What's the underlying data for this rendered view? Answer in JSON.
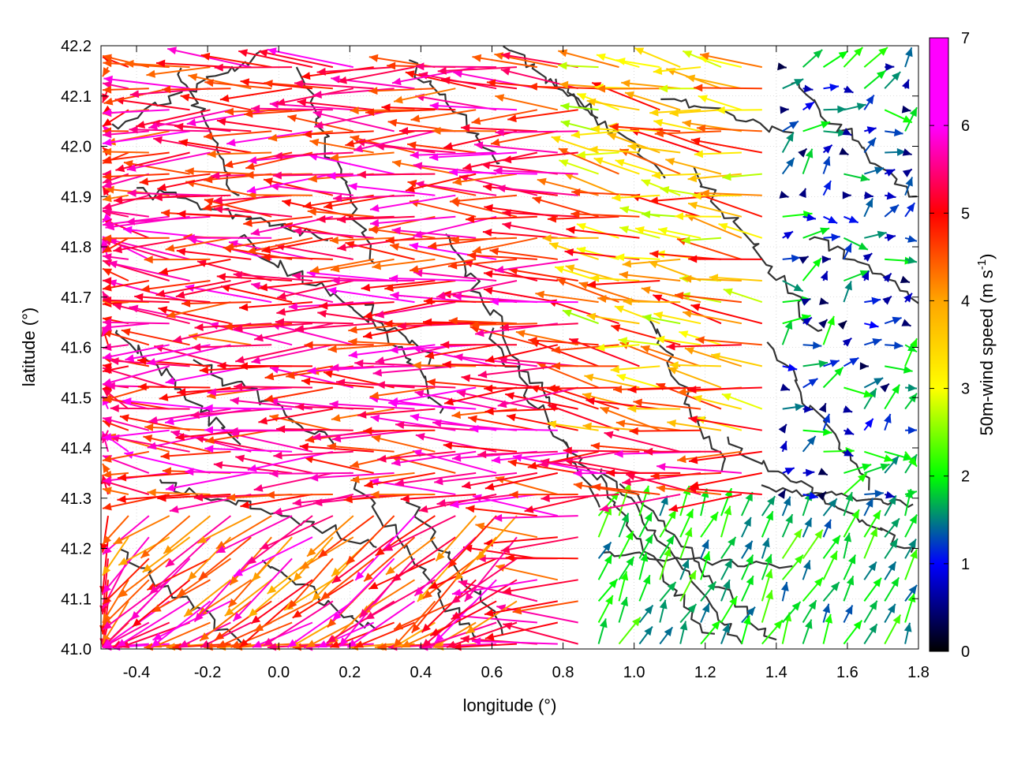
{
  "chart_data": {
    "type": "vector-field",
    "xlabel": "longitude (°)",
    "ylabel": "latitude (°)",
    "colorbar_label": "50m-wind speed (m s",
    "colorbar_label_sup": "-1",
    "colorbar_label_end": ")",
    "xlim": [
      -0.5,
      1.8
    ],
    "ylim": [
      41.0,
      42.2
    ],
    "x_ticks": [
      -0.4,
      -0.2,
      0.0,
      0.2,
      0.4,
      0.6,
      0.8,
      1.0,
      1.2,
      1.4,
      1.6,
      1.8
    ],
    "x_tick_labels": [
      "-0.4",
      "-0.2",
      "0.0",
      "0.2",
      "0.4",
      "0.6",
      "0.8",
      "1.0",
      "1.2",
      "1.4",
      "1.6",
      "1.8"
    ],
    "y_ticks": [
      41.0,
      41.1,
      41.2,
      41.3,
      41.4,
      41.5,
      41.6,
      41.7,
      41.8,
      41.9,
      42.0,
      42.1,
      42.2
    ],
    "y_tick_labels": [
      "41.0",
      "41.1",
      "41.2",
      "41.3",
      "41.4",
      "41.5",
      "41.6",
      "41.7",
      "41.8",
      "41.9",
      "42.0",
      "42.1",
      "42.2"
    ],
    "colorbar_range": [
      0,
      7
    ],
    "colorbar_ticks": [
      0,
      1,
      2,
      3,
      4,
      5,
      6,
      7
    ],
    "colorbar_tick_labels": [
      "0",
      "1",
      "2",
      "3",
      "4",
      "5",
      "6",
      "7"
    ],
    "colormap": [
      "#000000",
      "#0000ff",
      "#00ff00",
      "#ffff00",
      "#ffa500",
      "#ff0000",
      "#ff00ff"
    ],
    "grid": true,
    "contour_color": "#333333",
    "wind_regimes": [
      {
        "lon": [
          -0.5,
          0.9
        ],
        "lat": [
          41.3,
          42.2
        ],
        "u": -6.5,
        "v": 0.1,
        "speed": [
          5.0,
          7.0
        ]
      },
      {
        "lon": [
          -0.5,
          0.7
        ],
        "lat": [
          41.0,
          41.3
        ],
        "u": -4.5,
        "v": -3.5,
        "speed": [
          4.5,
          7.0
        ]
      },
      {
        "lon": [
          0.9,
          1.4
        ],
        "lat": [
          41.4,
          42.2
        ],
        "u": -4.0,
        "v": 0.6,
        "speed": [
          3.0,
          6.0
        ]
      },
      {
        "lon": [
          1.4,
          1.8
        ],
        "lat": [
          41.3,
          42.2
        ],
        "u": 0.5,
        "v": 0.2,
        "speed": [
          0.3,
          2.5
        ]
      },
      {
        "lon": [
          0.85,
          1.8
        ],
        "lat": [
          41.0,
          41.3
        ],
        "u": 0.6,
        "v": 1.2,
        "speed": [
          1.5,
          2.8
        ]
      }
    ]
  }
}
